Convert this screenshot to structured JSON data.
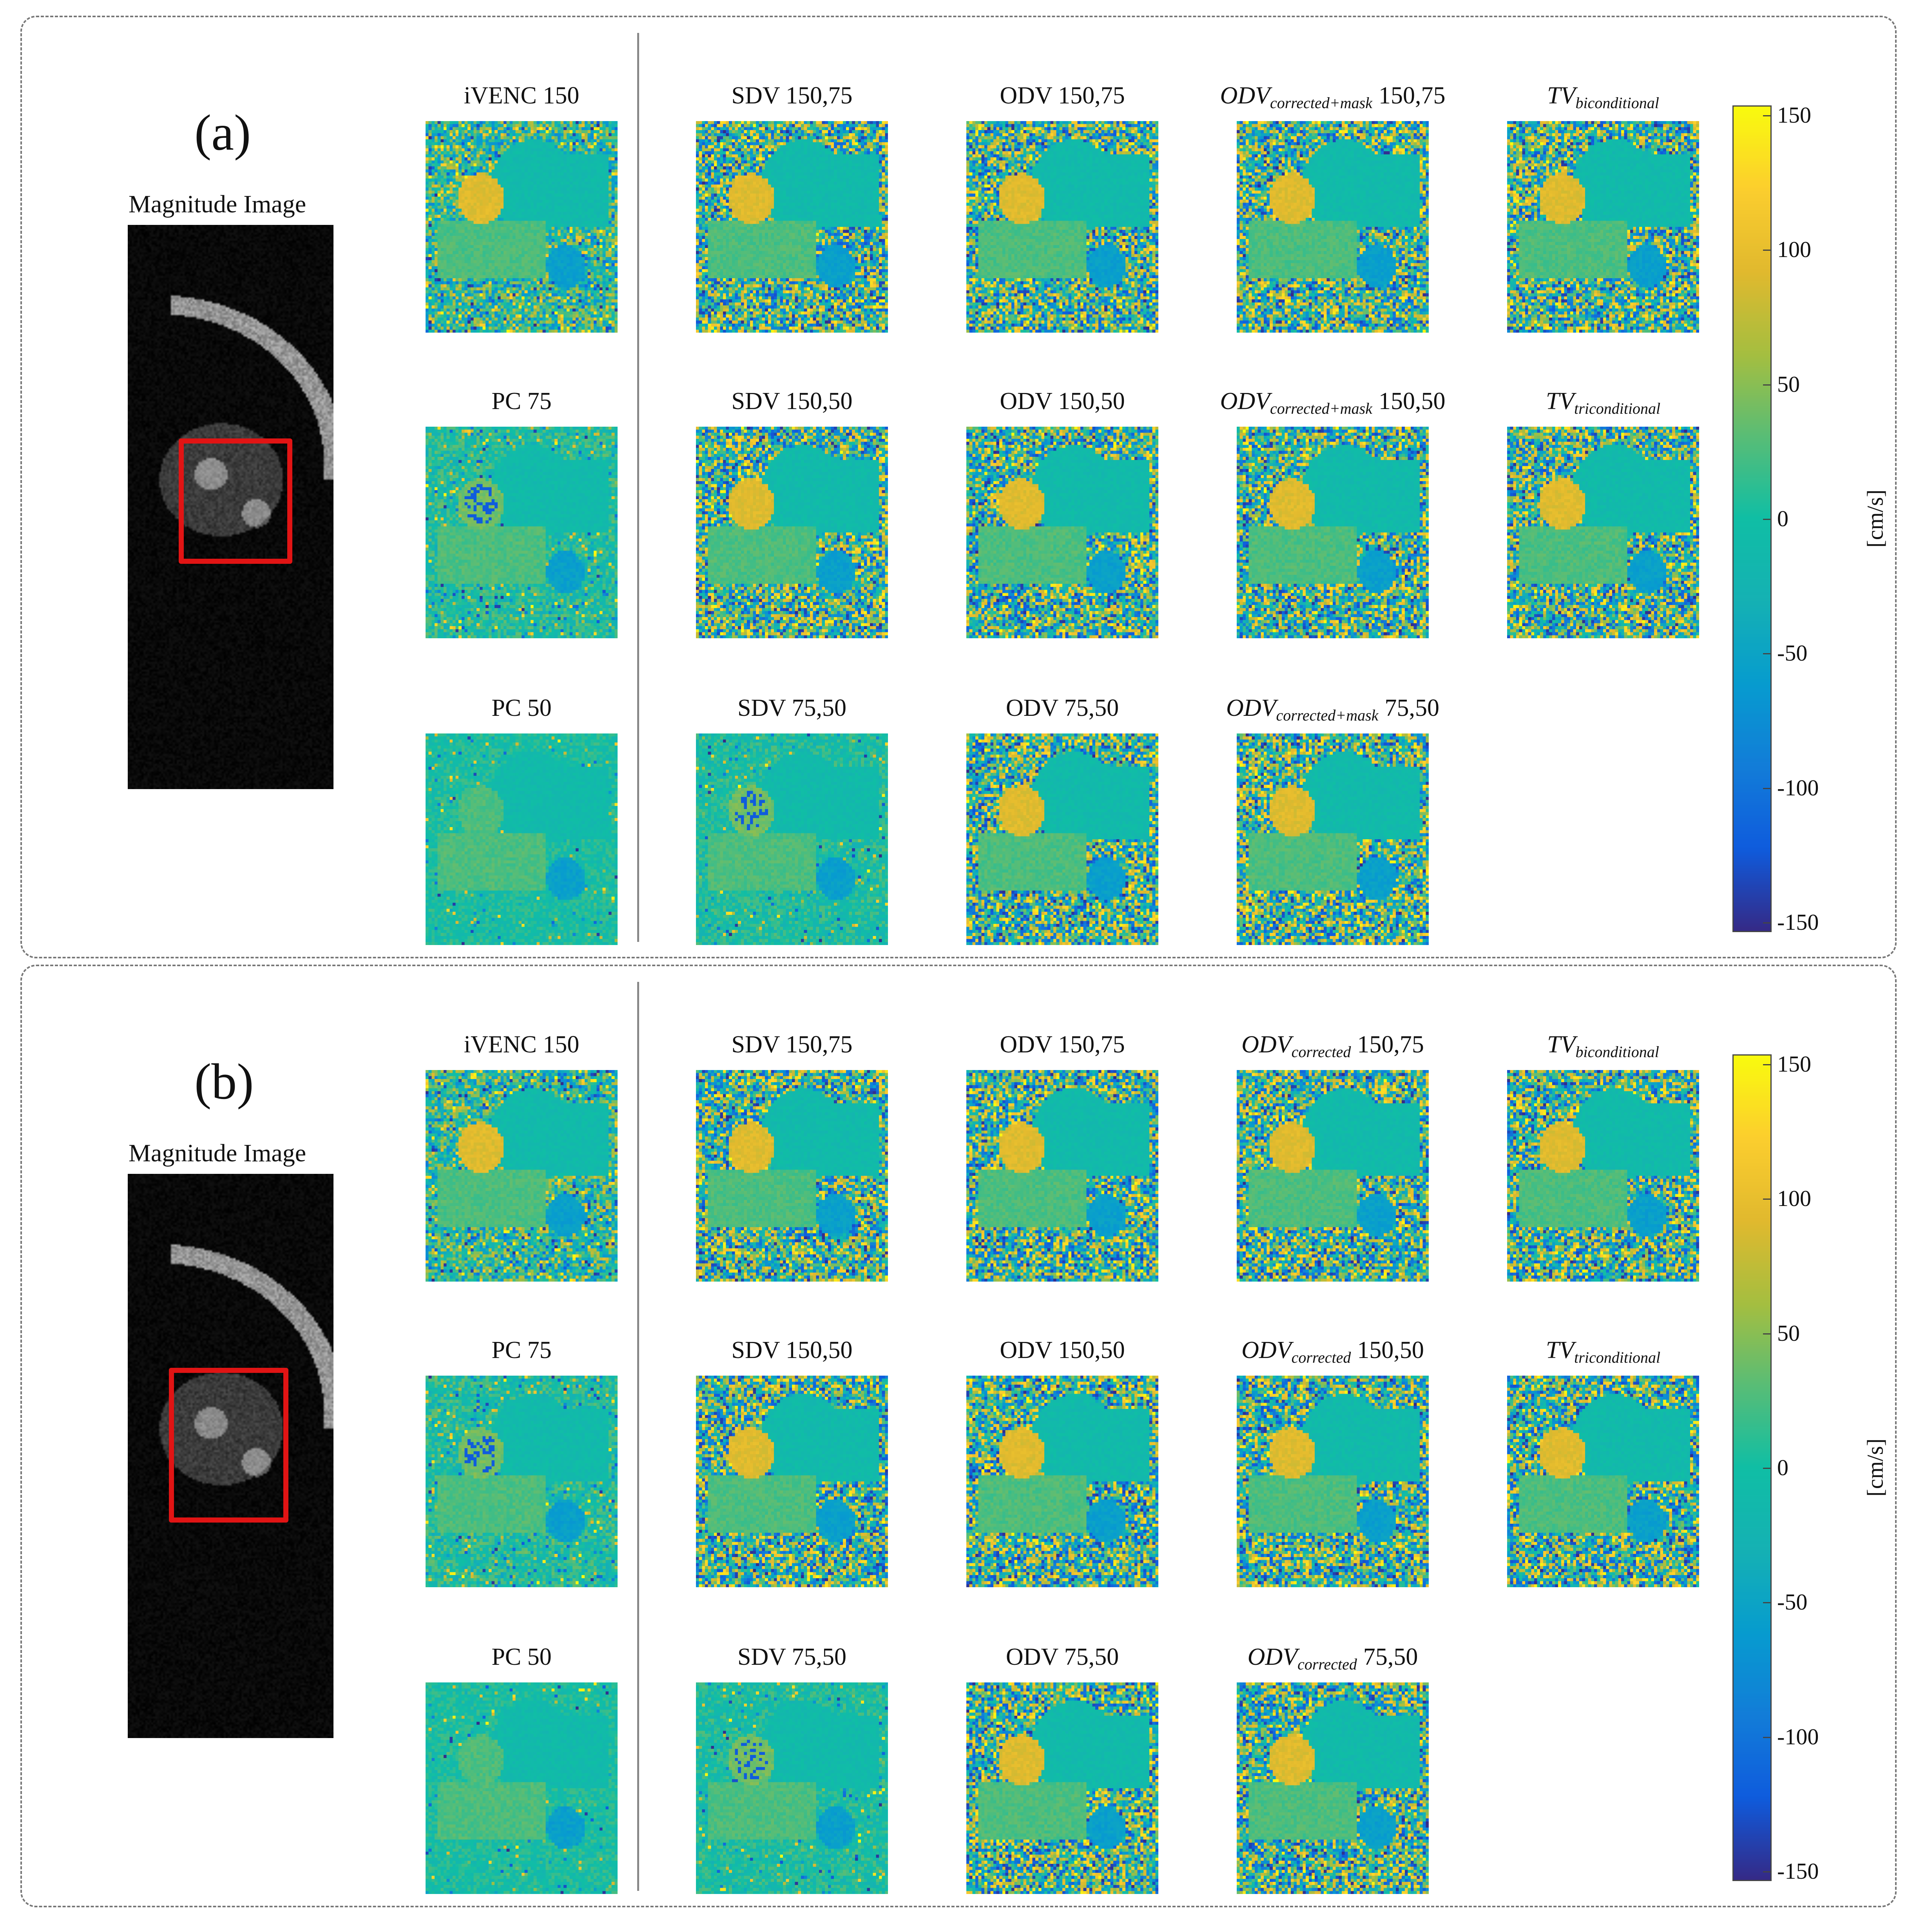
{
  "panels": [
    {
      "label": "(a)",
      "magnitude_title": "Magnitude Image",
      "tiles": [
        {
          "row": 0,
          "col": 0,
          "title_plain": "iVENC 150"
        },
        {
          "row": 0,
          "col": 1,
          "title_plain": "SDV 150,75"
        },
        {
          "row": 0,
          "col": 2,
          "title_plain": "ODV 150,75"
        },
        {
          "row": 0,
          "col": 3,
          "title_main": "ODV",
          "title_sub": "corrected+mask",
          "title_tail": "150,75"
        },
        {
          "row": 0,
          "col": 4,
          "title_main": "TV",
          "title_sub": "biconditional",
          "title_tail": ""
        },
        {
          "row": 1,
          "col": 0,
          "title_plain": "PC 75"
        },
        {
          "row": 1,
          "col": 1,
          "title_plain": "SDV 150,50"
        },
        {
          "row": 1,
          "col": 2,
          "title_plain": "ODV 150,50"
        },
        {
          "row": 1,
          "col": 3,
          "title_main": "ODV",
          "title_sub": "corrected+mask",
          "title_tail": "150,50"
        },
        {
          "row": 1,
          "col": 4,
          "title_main": "TV",
          "title_sub": "triconditional",
          "title_tail": ""
        },
        {
          "row": 2,
          "col": 0,
          "title_plain": "PC 50"
        },
        {
          "row": 2,
          "col": 1,
          "title_plain": "SDV 75,50"
        },
        {
          "row": 2,
          "col": 2,
          "title_plain": "ODV 75,50"
        },
        {
          "row": 2,
          "col": 3,
          "title_main": "ODV",
          "title_sub": "corrected+mask",
          "title_tail": "75,50"
        }
      ],
      "colorbar": {
        "unit": "[cm/s]",
        "ticks": [
          "150",
          "100",
          "50",
          "0",
          "-50",
          "-100",
          "-150"
        ],
        "range": [
          -150,
          150
        ]
      }
    },
    {
      "label": "(b)",
      "magnitude_title": "Magnitude Image",
      "tiles": [
        {
          "row": 0,
          "col": 0,
          "title_plain": "iVENC 150"
        },
        {
          "row": 0,
          "col": 1,
          "title_plain": "SDV 150,75"
        },
        {
          "row": 0,
          "col": 2,
          "title_plain": "ODV 150,75"
        },
        {
          "row": 0,
          "col": 3,
          "title_main": "ODV",
          "title_sub": "corrected",
          "title_tail": "150,75"
        },
        {
          "row": 0,
          "col": 4,
          "title_main": "TV",
          "title_sub": "biconditional",
          "title_tail": ""
        },
        {
          "row": 1,
          "col": 0,
          "title_plain": "PC 75"
        },
        {
          "row": 1,
          "col": 1,
          "title_plain": "SDV 150,50"
        },
        {
          "row": 1,
          "col": 2,
          "title_plain": "ODV 150,50"
        },
        {
          "row": 1,
          "col": 3,
          "title_main": "ODV",
          "title_sub": "corrected",
          "title_tail": "150,50"
        },
        {
          "row": 1,
          "col": 4,
          "title_main": "TV",
          "title_sub": "triconditional",
          "title_tail": ""
        },
        {
          "row": 2,
          "col": 0,
          "title_plain": "PC 50"
        },
        {
          "row": 2,
          "col": 1,
          "title_plain": "SDV 75,50"
        },
        {
          "row": 2,
          "col": 2,
          "title_plain": "ODV 75,50"
        },
        {
          "row": 2,
          "col": 3,
          "title_main": "ODV",
          "title_sub": "corrected",
          "title_tail": "75,50"
        }
      ],
      "colorbar": {
        "unit": "[cm/s]",
        "ticks": [
          "150",
          "100",
          "50",
          "0",
          "-50",
          "-100",
          "-150"
        ],
        "range": [
          -150,
          150
        ]
      }
    }
  ]
}
